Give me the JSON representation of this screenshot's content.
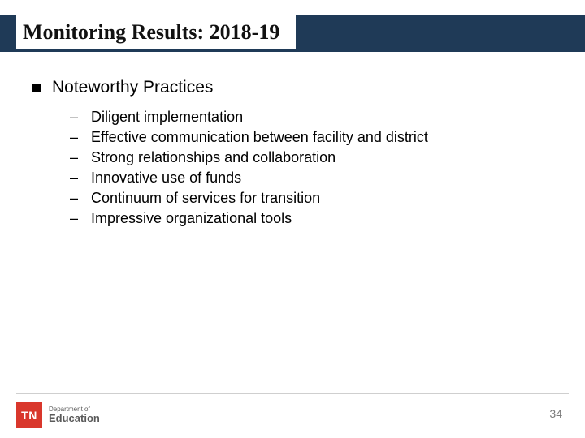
{
  "colors": {
    "band": "#1f3a57",
    "accent_red": "#d9372c",
    "text": "#000000",
    "muted": "#7a7a7a",
    "divider": "#cfcfcf",
    "background": "#ffffff"
  },
  "typography": {
    "title_font": "Georgia",
    "body_font": "Arial",
    "title_size_pt": 26,
    "level1_size_pt": 21,
    "sub_size_pt": 18
  },
  "title": "Monitoring Results: 2018-19",
  "level1": {
    "text": "Noteworthy Practices"
  },
  "sub_items": [
    "Diligent implementation",
    "Effective communication between facility and district",
    "Strong relationships and collaboration",
    "Innovative use of funds",
    "Continuum of services for transition",
    "Impressive organizational tools"
  ],
  "footer": {
    "logo_block": "TN",
    "logo_line1": "Department of",
    "logo_line2": "Education",
    "page_number": "34"
  }
}
